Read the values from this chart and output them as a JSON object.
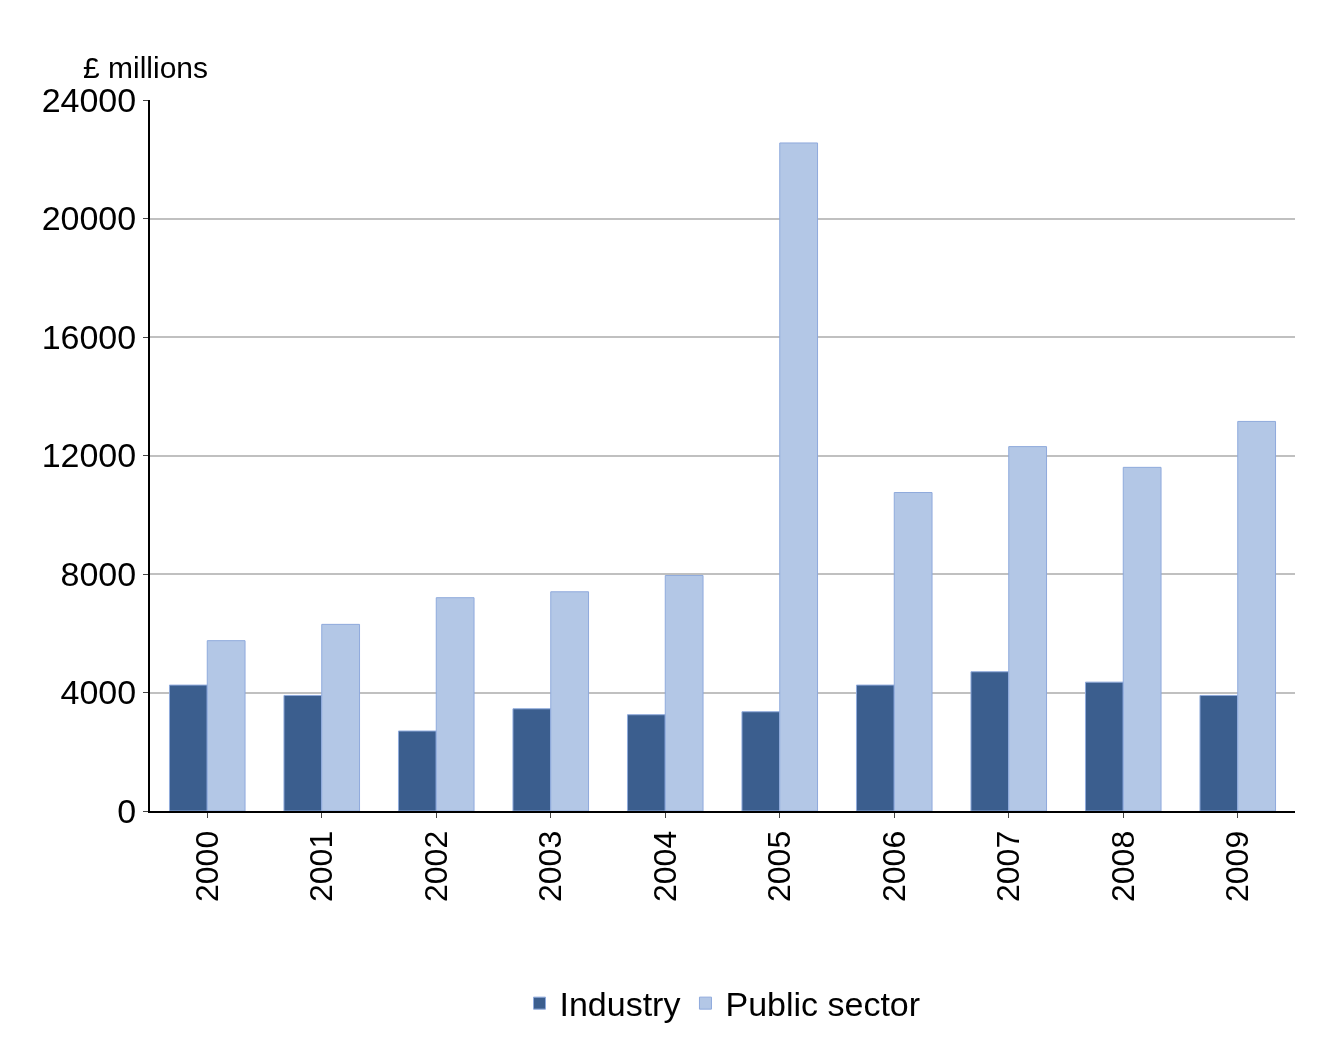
{
  "chart_data": {
    "type": "bar",
    "ylabel": "£ millions",
    "categories": [
      "2000",
      "2001",
      "2002",
      "2003",
      "2004",
      "2005",
      "2006",
      "2007",
      "2008",
      "2009"
    ],
    "series": [
      {
        "name": "Industry",
        "color": "#3b5e8e",
        "values": [
          4250,
          3900,
          2700,
          3450,
          3250,
          3350,
          4250,
          4700,
          4350,
          3900
        ]
      },
      {
        "name": "Public sector",
        "color": "#b3c7e6",
        "values": [
          5750,
          6300,
          7200,
          7400,
          7950,
          22550,
          10750,
          12300,
          11600,
          13150
        ]
      }
    ],
    "ylim": [
      0,
      24000
    ],
    "yticks": [
      0,
      4000,
      8000,
      12000,
      16000,
      20000,
      24000
    ],
    "grid": "y",
    "legend": "bottom"
  }
}
